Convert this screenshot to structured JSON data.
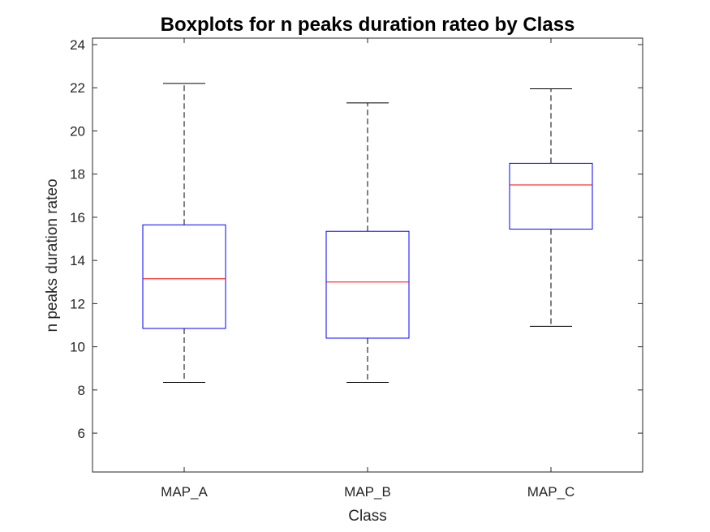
{
  "chart_data": {
    "type": "box",
    "title": "Boxplots for n peaks duration rateo by Class",
    "xlabel": "Class",
    "ylabel": "n peaks duration rateo",
    "ylim": [
      4.2,
      24.3
    ],
    "yticks": [
      "6",
      "8",
      "10",
      "12",
      "14",
      "16",
      "18",
      "20",
      "22",
      "24"
    ],
    "categories": [
      "MAP_A",
      "MAP_B",
      "MAP_C"
    ],
    "boxes": [
      {
        "category": "MAP_A",
        "whisker_low": 8.35,
        "q1": 10.85,
        "median": 13.15,
        "q3": 15.65,
        "whisker_high": 22.2
      },
      {
        "category": "MAP_B",
        "whisker_low": 8.35,
        "q1": 10.4,
        "median": 13.0,
        "q3": 15.35,
        "whisker_high": 21.3
      },
      {
        "category": "MAP_C",
        "whisker_low": 10.95,
        "q1": 15.45,
        "median": 17.5,
        "q3": 18.5,
        "whisker_high": 21.95
      }
    ],
    "grid": false,
    "colors": {
      "box": "#0000ff",
      "median": "#ff0000",
      "whisker": "#000000",
      "axis": "#262626"
    }
  }
}
